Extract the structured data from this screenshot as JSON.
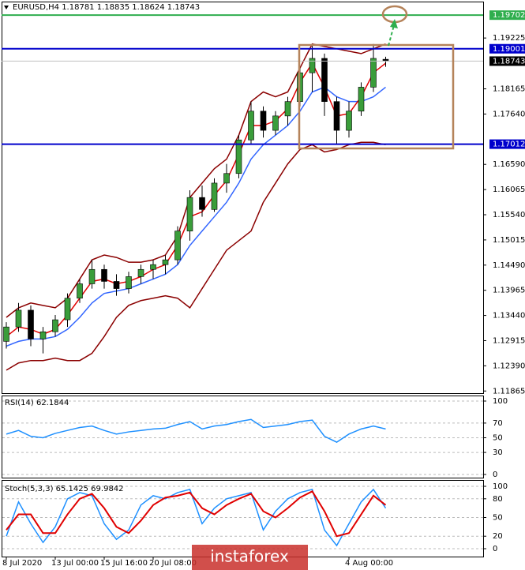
{
  "chart_data": [
    {
      "type": "candlestick",
      "title": "EURUSD,H4 1.18781 1.18835 1.18624 1.18743",
      "categories": [
        "8 Jul 2020",
        null,
        null,
        null,
        "13 Jul 00:00",
        null,
        null,
        null,
        "15 Jul 16:00",
        null,
        null,
        null,
        "20 Jul 08:00",
        null,
        null,
        null,
        null,
        null,
        null,
        null,
        null,
        null,
        null,
        null,
        null,
        null,
        null,
        null,
        "4 Aug 00:00",
        null,
        null,
        null
      ],
      "open": [
        1.129,
        1.132,
        1.1355,
        1.1295,
        1.131,
        1.1335,
        1.138,
        1.141,
        1.144,
        1.1415,
        1.14,
        1.1425,
        1.144,
        1.145,
        1.146,
        1.152,
        1.159,
        1.1565,
        1.162,
        1.164,
        1.171,
        1.177,
        1.173,
        1.176,
        1.179,
        1.185,
        1.188,
        1.179,
        1.173,
        1.177,
        1.182,
        1.18781
      ],
      "high": [
        1.133,
        1.137,
        1.1365,
        1.132,
        1.1345,
        1.139,
        1.142,
        1.146,
        1.145,
        1.143,
        1.1435,
        1.145,
        1.146,
        1.147,
        1.153,
        1.1605,
        1.1615,
        1.163,
        1.166,
        1.172,
        1.179,
        1.178,
        1.177,
        1.18,
        1.186,
        1.191,
        1.189,
        1.18,
        1.179,
        1.183,
        1.191,
        1.18835
      ],
      "low": [
        1.1275,
        1.131,
        1.128,
        1.1265,
        1.13,
        1.132,
        1.137,
        1.14,
        1.14,
        1.1385,
        1.139,
        1.141,
        1.142,
        1.143,
        1.145,
        1.15,
        1.155,
        1.156,
        1.16,
        1.163,
        1.17,
        1.1715,
        1.172,
        1.174,
        1.178,
        1.181,
        1.176,
        1.17,
        1.1715,
        1.176,
        1.181,
        1.18624
      ],
      "close": [
        1.132,
        1.1355,
        1.1295,
        1.131,
        1.1335,
        1.138,
        1.141,
        1.144,
        1.1415,
        1.14,
        1.1425,
        1.144,
        1.145,
        1.146,
        1.152,
        1.159,
        1.1565,
        1.162,
        1.164,
        1.171,
        1.177,
        1.173,
        1.176,
        1.179,
        1.185,
        1.188,
        1.179,
        1.173,
        1.177,
        1.182,
        1.188,
        1.18743
      ],
      "up_color": "#3a9d3a",
      "down_color": "#000000",
      "overlays": [
        {
          "color": "#8b0000",
          "values": [
            1.134,
            1.136,
            1.137,
            1.1365,
            1.136,
            1.138,
            1.142,
            1.146,
            1.147,
            1.1465,
            1.1455,
            1.1455,
            1.146,
            1.147,
            1.151,
            1.159,
            1.162,
            1.165,
            1.167,
            1.172,
            1.179,
            1.181,
            1.18,
            1.181,
            1.186,
            1.191,
            1.1905,
            1.19,
            1.1895,
            1.189,
            1.19,
            1.191
          ]
        },
        {
          "color": "#8b0000",
          "values": [
            1.123,
            1.1245,
            1.125,
            1.125,
            1.1255,
            1.125,
            1.125,
            1.1265,
            1.13,
            1.134,
            1.1365,
            1.1375,
            1.138,
            1.1385,
            1.138,
            1.136,
            1.14,
            1.144,
            1.148,
            1.15,
            1.152,
            1.158,
            1.162,
            1.166,
            1.169,
            1.17,
            1.1685,
            1.169,
            1.17,
            1.1705,
            1.1705,
            1.17
          ]
        },
        {
          "color": "#3366ff",
          "values": [
            1.128,
            1.129,
            1.1295,
            1.1295,
            1.13,
            1.1315,
            1.134,
            1.137,
            1.139,
            1.1395,
            1.14,
            1.141,
            1.142,
            1.143,
            1.145,
            1.149,
            1.152,
            1.155,
            1.158,
            1.162,
            1.167,
            1.17,
            1.172,
            1.174,
            1.177,
            1.181,
            1.182,
            1.18,
            1.179,
            1.179,
            1.18,
            1.182
          ]
        },
        {
          "color": "#e00000",
          "values": [
            1.13,
            1.132,
            1.1315,
            1.1305,
            1.1315,
            1.1345,
            1.138,
            1.1415,
            1.142,
            1.141,
            1.1415,
            1.1425,
            1.144,
            1.145,
            1.149,
            1.155,
            1.156,
            1.1595,
            1.1625,
            1.168,
            1.174,
            1.174,
            1.175,
            1.1775,
            1.183,
            1.187,
            1.182,
            1.176,
            1.1765,
            1.18,
            1.185,
            1.187
          ]
        }
      ],
      "levels": [
        {
          "value": 1.19702,
          "color": "#2fae4e"
        },
        {
          "value": 1.19001,
          "color": "#0000cc"
        },
        {
          "value": 1.17012,
          "color": "#0000cc"
        }
      ],
      "last_price": {
        "value": 1.18743,
        "color": "#000000"
      },
      "ylim": [
        1.1182,
        1.1982
      ],
      "yticks": [
        1.19225,
        1.18165,
        {
          "value": 1.1764,
          "label": "1.17640"
        },
        {
          "value": 1.1659,
          "label": "1.16590"
        },
        1.16065,
        {
          "value": 1.1554,
          "label": "1.15540"
        },
        1.15015,
        {
          "value": 1.1449,
          "label": "1.14490"
        },
        1.13965,
        {
          "value": 1.1344,
          "label": "1.13440"
        },
        1.12915,
        {
          "value": 1.1239,
          "label": "1.12390"
        },
        1.11865
      ],
      "grid": false
    },
    {
      "type": "line",
      "title": "RSI(14) 62.1844",
      "series": [
        {
          "color": "#1e90ff",
          "values": [
            55,
            60,
            52,
            50,
            56,
            60,
            64,
            66,
            60,
            55,
            58,
            60,
            62,
            63,
            68,
            72,
            62,
            66,
            68,
            72,
            75,
            64,
            66,
            68,
            72,
            74,
            52,
            44,
            55,
            62,
            66,
            62
          ]
        }
      ],
      "ylim": [
        0,
        100
      ],
      "yticks": [
        100,
        70,
        50,
        30,
        0
      ],
      "grid": true
    },
    {
      "type": "line",
      "title": "Stoch(5,3,3) 65.1425 69.9842",
      "series": [
        {
          "color": "#1e90ff",
          "values": [
            20,
            75,
            40,
            10,
            35,
            80,
            90,
            85,
            40,
            15,
            30,
            70,
            85,
            80,
            90,
            95,
            40,
            65,
            80,
            85,
            90,
            30,
            60,
            80,
            90,
            95,
            30,
            5,
            40,
            75,
            95,
            65
          ]
        },
        {
          "color": "#e00000",
          "values": [
            30,
            55,
            55,
            25,
            25,
            55,
            80,
            88,
            65,
            35,
            25,
            45,
            70,
            82,
            85,
            90,
            65,
            55,
            70,
            80,
            88,
            60,
            50,
            65,
            82,
            92,
            60,
            20,
            25,
            55,
            85,
            70
          ]
        }
      ],
      "ylim": [
        0,
        100
      ],
      "yticks": [
        100,
        80,
        50,
        20,
        0
      ],
      "grid": true
    }
  ],
  "watermark": "instaforex"
}
